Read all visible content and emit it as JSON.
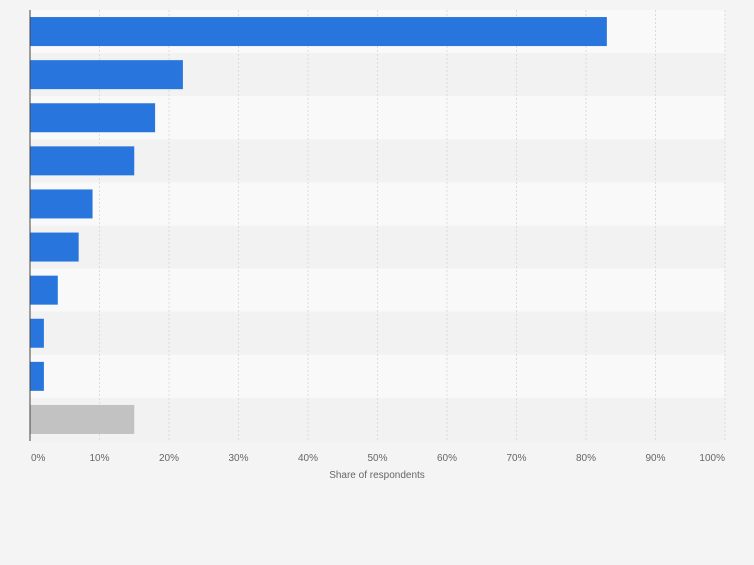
{
  "chart_data": {
    "type": "bar",
    "orientation": "horizontal",
    "categories": [
      "",
      "",
      "",
      "",
      "",
      "",
      "",
      "",
      "",
      ""
    ],
    "values": [
      83,
      22,
      18,
      15,
      9,
      7,
      4,
      2,
      2,
      15
    ],
    "xlabel": "Share of respondents",
    "ylabel": "",
    "xlim": [
      0,
      100
    ],
    "xticks": [
      "0%",
      "10%",
      "20%",
      "30%",
      "40%",
      "50%",
      "60%",
      "70%",
      "80%",
      "90%",
      "100%"
    ],
    "grid": true,
    "colors": {
      "primary": "#2876dd",
      "last_bar": "#c2c2c2",
      "band_light": "#f9f9f9",
      "band_dark": "#f2f2f2",
      "gridline": "#dcdcdc",
      "axis": "#444444",
      "text": "#666666"
    }
  }
}
